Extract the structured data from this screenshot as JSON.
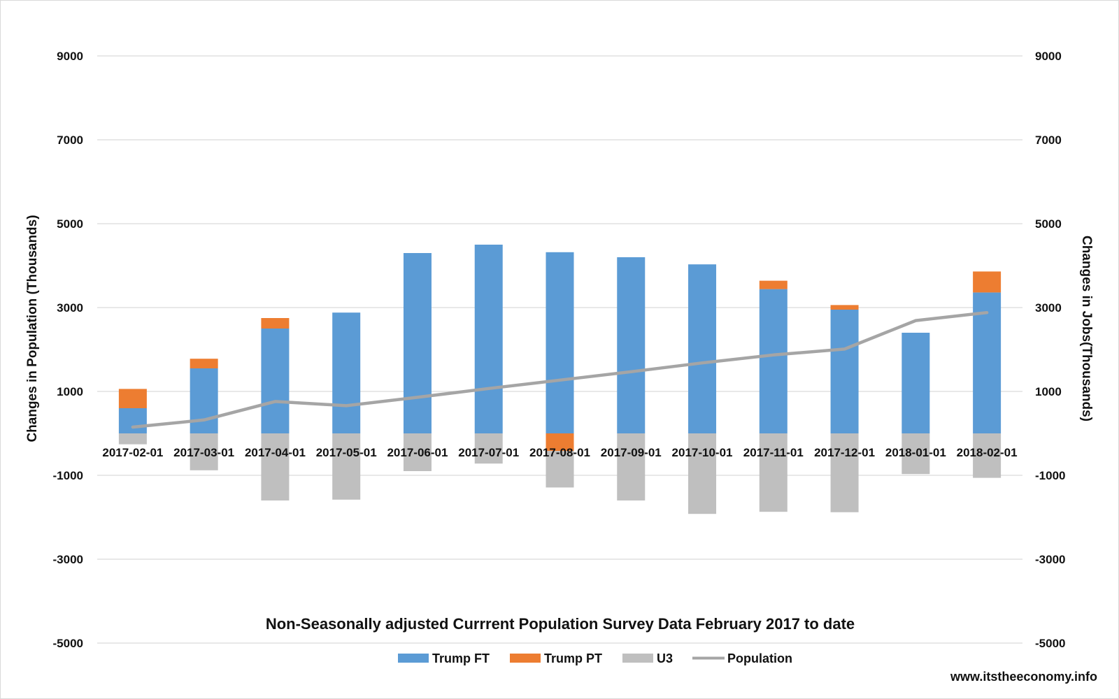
{
  "chart_data": {
    "type": "bar",
    "title": "Non-Seasonally adjusted Currrent Population Survey Data February 2017 to date",
    "ylabel": "Changes in Population (Thousands)",
    "y2label": "Changes in Jobs(Thousands)",
    "ylim": [
      -5000,
      9000
    ],
    "y2lim": [
      -5000,
      9000
    ],
    "yticks": [
      9000,
      7000,
      5000,
      3000,
      1000,
      -1000,
      -3000,
      -5000
    ],
    "grid": true,
    "legend_position": "bottom",
    "categories": [
      "2017-02-01",
      "2017-03-01",
      "2017-04-01",
      "2017-05-01",
      "2017-06-01",
      "2017-07-01",
      "2017-08-01",
      "2017-09-01",
      "2017-10-01",
      "2017-11-01",
      "2017-12-01",
      "2018-01-01",
      "2018-02-01"
    ],
    "series": [
      {
        "name": "Trump FT",
        "type": "stacked-bar",
        "color": "#5b9bd5",
        "values": [
          600,
          1550,
          2500,
          2880,
          4300,
          4500,
          4320,
          4200,
          4030,
          3440,
          2950,
          2400,
          3360
        ]
      },
      {
        "name": "Trump PT",
        "type": "stacked-bar",
        "color": "#ed7d31",
        "values": [
          460,
          230,
          250,
          0,
          0,
          0,
          -420,
          0,
          0,
          200,
          110,
          0,
          500
        ]
      },
      {
        "name": "U3",
        "type": "stacked-bar",
        "color": "#bfbfbf",
        "values": [
          -260,
          -880,
          -1600,
          -1580,
          -900,
          -720,
          -870,
          -1600,
          -1920,
          -1870,
          -1880,
          -970,
          -1060
        ]
      },
      {
        "name": "Population",
        "type": "line",
        "color": "#a5a5a5",
        "values": [
          150,
          320,
          760,
          660,
          860,
          1070,
          1270,
          1470,
          1680,
          1870,
          2010,
          2690,
          2880
        ]
      }
    ]
  },
  "source": "www.itstheeconomy.info"
}
